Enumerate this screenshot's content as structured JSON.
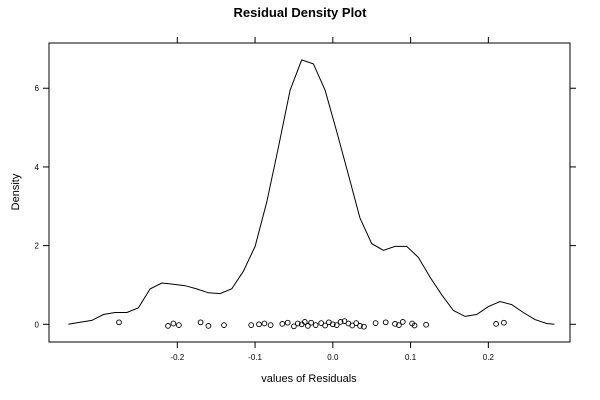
{
  "chart_data": {
    "type": "line",
    "title": "Residual Density Plot",
    "xlabel": "values of Residuals",
    "ylabel": "Density",
    "xlim": [
      -0.365,
      0.305
    ],
    "ylim": [
      -0.45,
      7.15
    ],
    "x_ticks": [
      -0.2,
      -0.1,
      0.0,
      0.1,
      0.2
    ],
    "x_tick_labels": [
      "-0.2",
      "-0.1",
      "0.0",
      "0.1",
      "0.2"
    ],
    "y_ticks": [
      0,
      2,
      4,
      6
    ],
    "y_tick_labels": [
      "0",
      "2",
      "4",
      "6"
    ],
    "grid": false,
    "density_curve": {
      "x": [
        -0.34,
        -0.325,
        -0.31,
        -0.295,
        -0.28,
        -0.265,
        -0.25,
        -0.235,
        -0.22,
        -0.205,
        -0.19,
        -0.175,
        -0.16,
        -0.145,
        -0.13,
        -0.115,
        -0.1,
        -0.085,
        -0.07,
        -0.055,
        -0.04,
        -0.025,
        -0.01,
        0.005,
        0.02,
        0.035,
        0.05,
        0.065,
        0.08,
        0.095,
        0.11,
        0.125,
        0.14,
        0.155,
        0.17,
        0.185,
        0.2,
        0.215,
        0.23,
        0.245,
        0.26,
        0.275,
        0.285
      ],
      "y": [
        0.0,
        0.05,
        0.1,
        0.25,
        0.3,
        0.3,
        0.42,
        0.9,
        1.05,
        1.02,
        0.98,
        0.9,
        0.8,
        0.78,
        0.9,
        1.35,
        1.98,
        3.1,
        4.5,
        5.95,
        6.72,
        6.62,
        5.95,
        4.9,
        3.8,
        2.7,
        2.05,
        1.88,
        1.98,
        1.98,
        1.7,
        1.2,
        0.75,
        0.35,
        0.2,
        0.25,
        0.45,
        0.58,
        0.5,
        0.3,
        0.12,
        0.02,
        0.0
      ]
    },
    "residual_points": [
      {
        "x": -0.275,
        "y": 0.05
      },
      {
        "x": -0.212,
        "y": -0.04
      },
      {
        "x": -0.205,
        "y": 0.02
      },
      {
        "x": -0.198,
        "y": -0.02
      },
      {
        "x": -0.17,
        "y": 0.05
      },
      {
        "x": -0.16,
        "y": -0.04
      },
      {
        "x": -0.14,
        "y": -0.02
      },
      {
        "x": -0.105,
        "y": -0.02
      },
      {
        "x": -0.095,
        "y": 0.0
      },
      {
        "x": -0.088,
        "y": 0.02
      },
      {
        "x": -0.08,
        "y": -0.02
      },
      {
        "x": -0.065,
        "y": 0.01
      },
      {
        "x": -0.058,
        "y": 0.04
      },
      {
        "x": -0.05,
        "y": -0.05
      },
      {
        "x": -0.045,
        "y": 0.02
      },
      {
        "x": -0.04,
        "y": 0.0
      },
      {
        "x": -0.036,
        "y": 0.06
      },
      {
        "x": -0.032,
        "y": -0.04
      },
      {
        "x": -0.028,
        "y": 0.04
      },
      {
        "x": -0.022,
        "y": -0.02
      },
      {
        "x": -0.015,
        "y": 0.03
      },
      {
        "x": -0.01,
        "y": -0.03
      },
      {
        "x": -0.005,
        "y": 0.05
      },
      {
        "x": 0.0,
        "y": 0.0
      },
      {
        "x": 0.005,
        "y": -0.02
      },
      {
        "x": 0.01,
        "y": 0.06
      },
      {
        "x": 0.015,
        "y": 0.08
      },
      {
        "x": 0.02,
        "y": 0.02
      },
      {
        "x": 0.025,
        "y": -0.03
      },
      {
        "x": 0.03,
        "y": 0.03
      },
      {
        "x": 0.035,
        "y": -0.04
      },
      {
        "x": 0.04,
        "y": -0.06
      },
      {
        "x": 0.055,
        "y": 0.03
      },
      {
        "x": 0.068,
        "y": 0.05
      },
      {
        "x": 0.08,
        "y": 0.01
      },
      {
        "x": 0.085,
        "y": -0.02
      },
      {
        "x": 0.09,
        "y": 0.06
      },
      {
        "x": 0.102,
        "y": 0.02
      },
      {
        "x": 0.105,
        "y": -0.03
      },
      {
        "x": 0.12,
        "y": -0.01
      },
      {
        "x": 0.21,
        "y": 0.01
      },
      {
        "x": 0.22,
        "y": 0.04
      }
    ]
  }
}
